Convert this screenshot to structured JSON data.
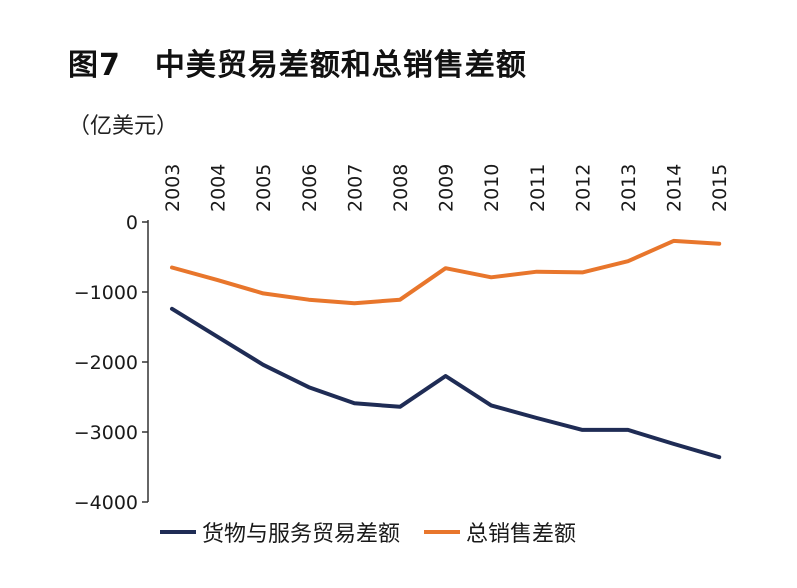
{
  "header": {
    "fig_no": "图7",
    "title": "中美贸易差额和总销售差额",
    "unit": "（亿美元）"
  },
  "colors": {
    "series_1": "#1f2c55",
    "series_2": "#e8762c",
    "axis": "#333333"
  },
  "chart_data": {
    "type": "line",
    "title": "中美贸易差额和总销售差额",
    "ylabel": "（亿美元）",
    "xlabel": "",
    "x": [
      "2003",
      "2004",
      "2005",
      "2006",
      "2007",
      "2008",
      "2009",
      "2010",
      "2011",
      "2012",
      "2013",
      "2014",
      "2015"
    ],
    "ylim": [
      -4000,
      0
    ],
    "yticks": [
      0,
      -1000,
      -2000,
      -3000,
      -4000
    ],
    "ytick_labels": [
      "0",
      "−1000",
      "−2000",
      "−3000",
      "−4000"
    ],
    "x_axis_position": "top",
    "grid": false,
    "legend_position": "bottom",
    "series": [
      {
        "name": "货物与服务贸易差额",
        "values": [
          -1240,
          -1640,
          -2040,
          -2360,
          -2590,
          -2640,
          -2200,
          -2620,
          -2800,
          -2970,
          -2970,
          -3170,
          -3360
        ]
      },
      {
        "name": "总销售差额",
        "values": [
          -650,
          -830,
          -1020,
          -1110,
          -1160,
          -1110,
          -660,
          -790,
          -710,
          -720,
          -560,
          -270,
          -310
        ]
      }
    ]
  }
}
